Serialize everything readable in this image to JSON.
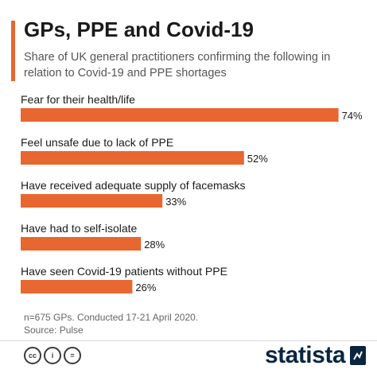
{
  "header": {
    "title": "GPs, PPE and Covid-19",
    "subtitle": "Share of UK general practitioners confirming the following in relation to Covid-19 and PPE shortages"
  },
  "chart_data": {
    "type": "bar",
    "orientation": "horizontal",
    "categories": [
      "Fear for their health/life",
      "Feel unsafe due to lack of PPE",
      "Have received adequate supply of facemasks",
      "Have had to self-isolate",
      "Have seen Covid-19 patients without PPE"
    ],
    "values": [
      74,
      52,
      33,
      28,
      26
    ],
    "value_labels": [
      "74%",
      "52%",
      "33%",
      "28%",
      "26%"
    ],
    "xlim": [
      0,
      80
    ],
    "grid": false,
    "bar_color": "#E8662F"
  },
  "footer": {
    "note": "n=675 GPs. Conducted 17-21 April 2020.",
    "source": "Source: Pulse"
  },
  "license_icons": [
    {
      "name": "cc",
      "text": "cc"
    },
    {
      "name": "by",
      "text": "i"
    },
    {
      "name": "nd",
      "text": "="
    }
  ],
  "brand": {
    "name": "statista",
    "color": "#0a2540"
  },
  "colors": {
    "accent": "#E8662F",
    "text": "#1a1a1a",
    "muted": "#555555"
  }
}
